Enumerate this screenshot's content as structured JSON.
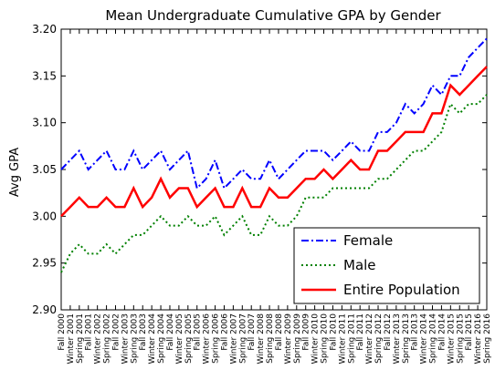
{
  "chart_data": {
    "type": "line",
    "title": "Mean Undergraduate Cumulative GPA by Gender",
    "xlabel": "",
    "ylabel": "Avg GPA",
    "ylim": [
      2.9,
      3.2
    ],
    "yticks": [
      "2.90",
      "2.95",
      "3.00",
      "3.05",
      "3.10",
      "3.15",
      "3.20"
    ],
    "grid": false,
    "legend_position": "lower-right",
    "categories": [
      "Fall 2000",
      "Winter 2001",
      "Spring 2001",
      "Fall 2001",
      "Winter 2002",
      "Spring 2002",
      "Fall 2002",
      "Winter 2003",
      "Spring 2003",
      "Fall 2003",
      "Winter 2004",
      "Spring 2004",
      "Fall 2004",
      "Winter 2005",
      "Spring 2005",
      "Fall 2005",
      "Winter 2006",
      "Spring 2006",
      "Fall 2006",
      "Winter 2007",
      "Spring 2007",
      "Fall 2007",
      "Winter 2008",
      "Spring 2008",
      "Fall 2008",
      "Winter 2009",
      "Spring 2009",
      "Fall 2009",
      "Winter 2010",
      "Spring 2010",
      "Fall 2010",
      "Winter 2011",
      "Spring 2011",
      "Fall 2011",
      "Winter 2012",
      "Spring 2012",
      "Fall 2012",
      "Winter 2013",
      "Spring 2013",
      "Fall 2013",
      "Winter 2014",
      "Spring 2014",
      "Fall 2014",
      "Winter 2015",
      "Spring 2015",
      "Fall 2015",
      "Winter 2016",
      "Spring 2016"
    ],
    "series": [
      {
        "name": "Female",
        "color": "#0000ff",
        "style": "dashdot",
        "values": [
          3.05,
          3.06,
          3.07,
          3.05,
          3.06,
          3.07,
          3.05,
          3.05,
          3.07,
          3.05,
          3.06,
          3.07,
          3.05,
          3.06,
          3.07,
          3.03,
          3.04,
          3.06,
          3.03,
          3.04,
          3.05,
          3.04,
          3.04,
          3.06,
          3.04,
          3.05,
          3.06,
          3.07,
          3.07,
          3.07,
          3.06,
          3.07,
          3.08,
          3.07,
          3.07,
          3.09,
          3.09,
          3.1,
          3.12,
          3.11,
          3.12,
          3.14,
          3.13,
          3.15,
          3.15,
          3.17,
          3.18,
          3.19
        ]
      },
      {
        "name": "Male",
        "color": "#008000",
        "style": "dotted",
        "values": [
          2.94,
          2.96,
          2.97,
          2.96,
          2.96,
          2.97,
          2.96,
          2.97,
          2.98,
          2.98,
          2.99,
          3.0,
          2.99,
          2.99,
          3.0,
          2.99,
          2.99,
          3.0,
          2.98,
          2.99,
          3.0,
          2.98,
          2.98,
          3.0,
          2.99,
          2.99,
          3.0,
          3.02,
          3.02,
          3.02,
          3.03,
          3.03,
          3.03,
          3.03,
          3.03,
          3.04,
          3.04,
          3.05,
          3.06,
          3.07,
          3.07,
          3.08,
          3.09,
          3.12,
          3.11,
          3.12,
          3.12,
          3.13
        ]
      },
      {
        "name": "Entire Population",
        "color": "#ff0000",
        "style": "solid",
        "values": [
          3.0,
          3.01,
          3.02,
          3.01,
          3.01,
          3.02,
          3.01,
          3.01,
          3.03,
          3.01,
          3.02,
          3.04,
          3.02,
          3.03,
          3.03,
          3.01,
          3.02,
          3.03,
          3.01,
          3.01,
          3.03,
          3.01,
          3.01,
          3.03,
          3.02,
          3.02,
          3.03,
          3.04,
          3.04,
          3.05,
          3.04,
          3.05,
          3.06,
          3.05,
          3.05,
          3.07,
          3.07,
          3.08,
          3.09,
          3.09,
          3.09,
          3.11,
          3.11,
          3.14,
          3.13,
          3.14,
          3.15,
          3.16
        ]
      }
    ]
  }
}
